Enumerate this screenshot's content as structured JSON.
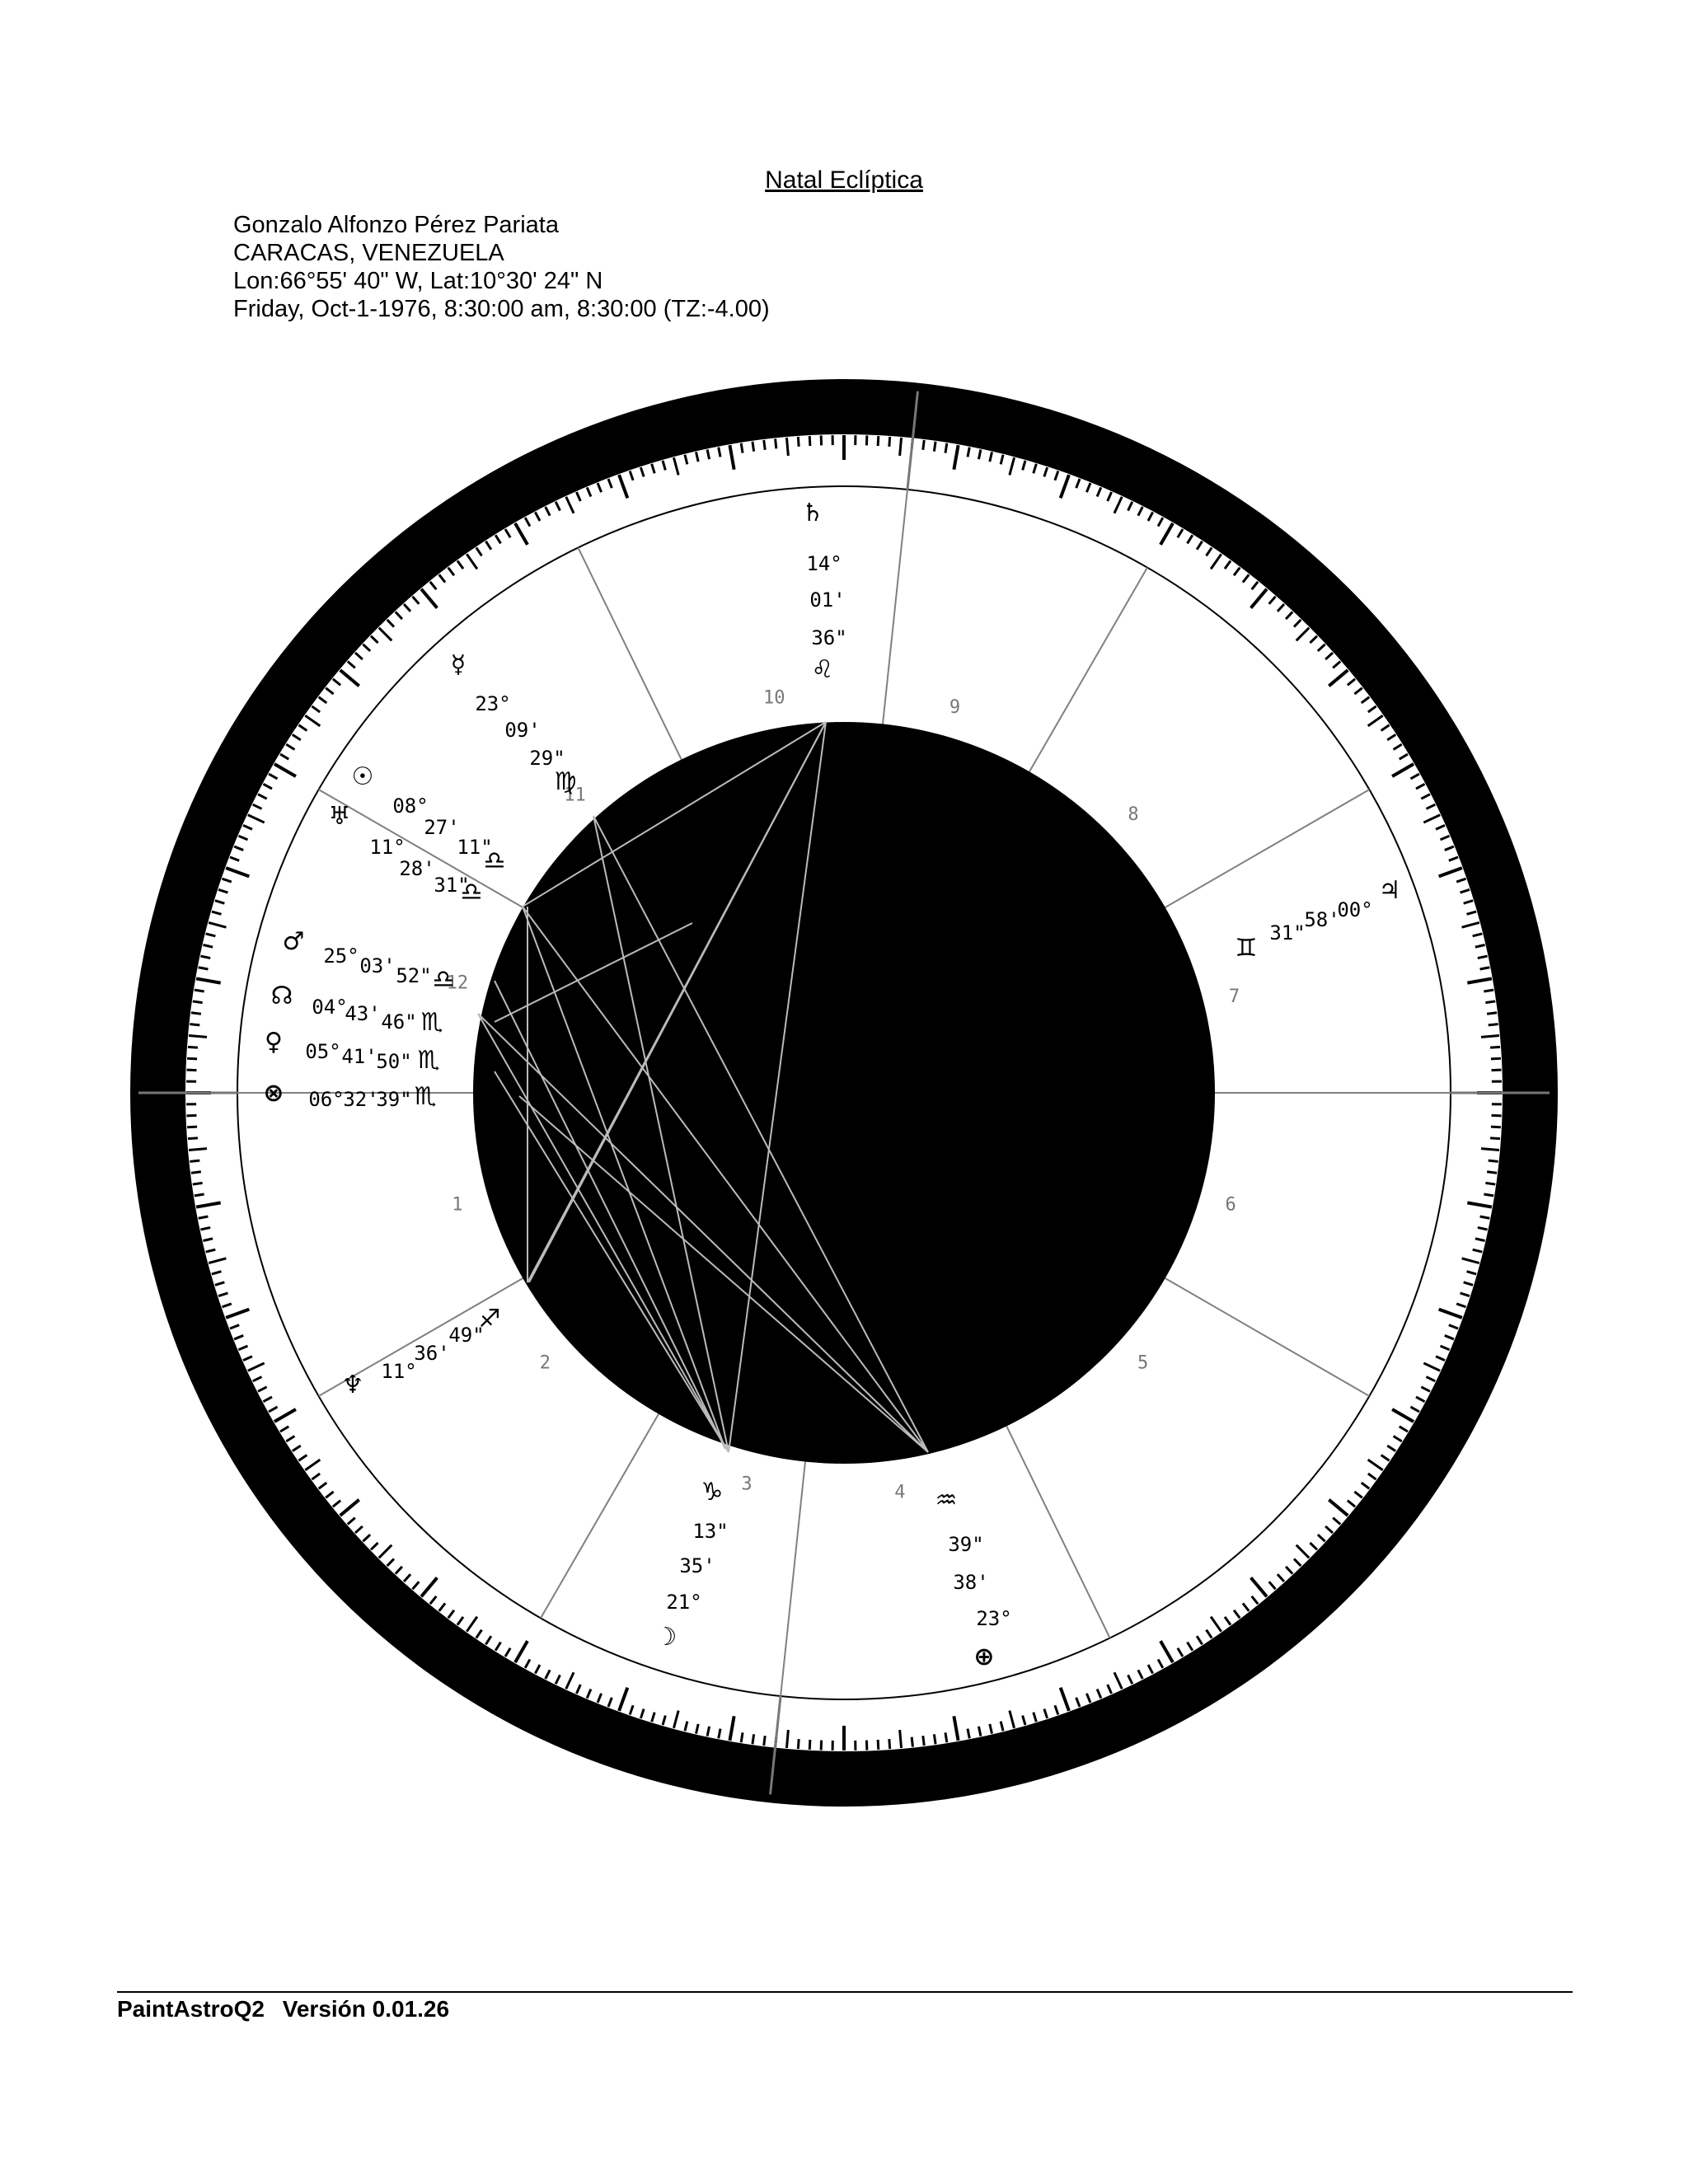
{
  "title": "Natal Eclíptica",
  "header": {
    "name": "Gonzalo Alfonzo Pérez Pariata",
    "place": "CARACAS, VENEZUELA",
    "coords": "Lon:66°55' 40\" W, Lat:10°30' 24\" N",
    "date": "Friday, Oct-1-1976, 8:30:00 am, 8:30:00 (TZ:-4.00)"
  },
  "footer": {
    "app": "PaintAstroQ2",
    "version": "Versión 0.01.26"
  },
  "houses": [
    "1",
    "2",
    "3",
    "4",
    "5",
    "6",
    "7",
    "8",
    "9",
    "10",
    "11",
    "12"
  ],
  "planets": [
    {
      "name": "saturn",
      "glyph": "♄",
      "sign_glyph": "♌",
      "deg": "14°",
      "min": "01'",
      "sec": "36\""
    },
    {
      "name": "mercury",
      "glyph": "☿",
      "sign_glyph": "♍",
      "deg": "23°",
      "min": "09'",
      "sec": "29\""
    },
    {
      "name": "sun",
      "glyph": "☉",
      "sign_glyph": "♎",
      "deg": "08°",
      "min": "27'",
      "sec": "11\""
    },
    {
      "name": "uranus",
      "glyph": "♅",
      "sign_glyph": "♎",
      "deg": "11°",
      "min": "28'",
      "sec": "31\""
    },
    {
      "name": "mars",
      "glyph": "♂",
      "sign_glyph": "♎",
      "deg": "25°",
      "min": "03'",
      "sec": "52\""
    },
    {
      "name": "north-node",
      "glyph": "☊",
      "sign_glyph": "♏",
      "deg": "04°",
      "min": "43'",
      "sec": "46\""
    },
    {
      "name": "venus",
      "glyph": "♀",
      "sign_glyph": "♏",
      "deg": "05°",
      "min": "41'",
      "sec": "50\""
    },
    {
      "name": "part-of-fortune",
      "glyph": "⊗",
      "sign_glyph": "♏",
      "deg": "06°",
      "min": "32'",
      "sec": "39\""
    },
    {
      "name": "jupiter",
      "glyph": "♃",
      "sign_glyph": "♊",
      "deg": "00°",
      "min": "58'",
      "sec": "31\""
    },
    {
      "name": "neptune",
      "glyph": "♆",
      "sign_glyph": "♐",
      "deg": "11°",
      "min": "36'",
      "sec": "49\""
    },
    {
      "name": "moon",
      "glyph": "☽",
      "sign_glyph": "♑",
      "deg": "21°",
      "min": "35'",
      "sec": "13\""
    },
    {
      "name": "pluto-ascendant",
      "glyph": "⊕",
      "sign_glyph": "♒",
      "deg": "23°",
      "min": "38'",
      "sec": "39\""
    }
  ],
  "colors": {
    "ring": "#000000",
    "inner": "#000000",
    "house_line": "#808080",
    "background": "#ffffff"
  }
}
